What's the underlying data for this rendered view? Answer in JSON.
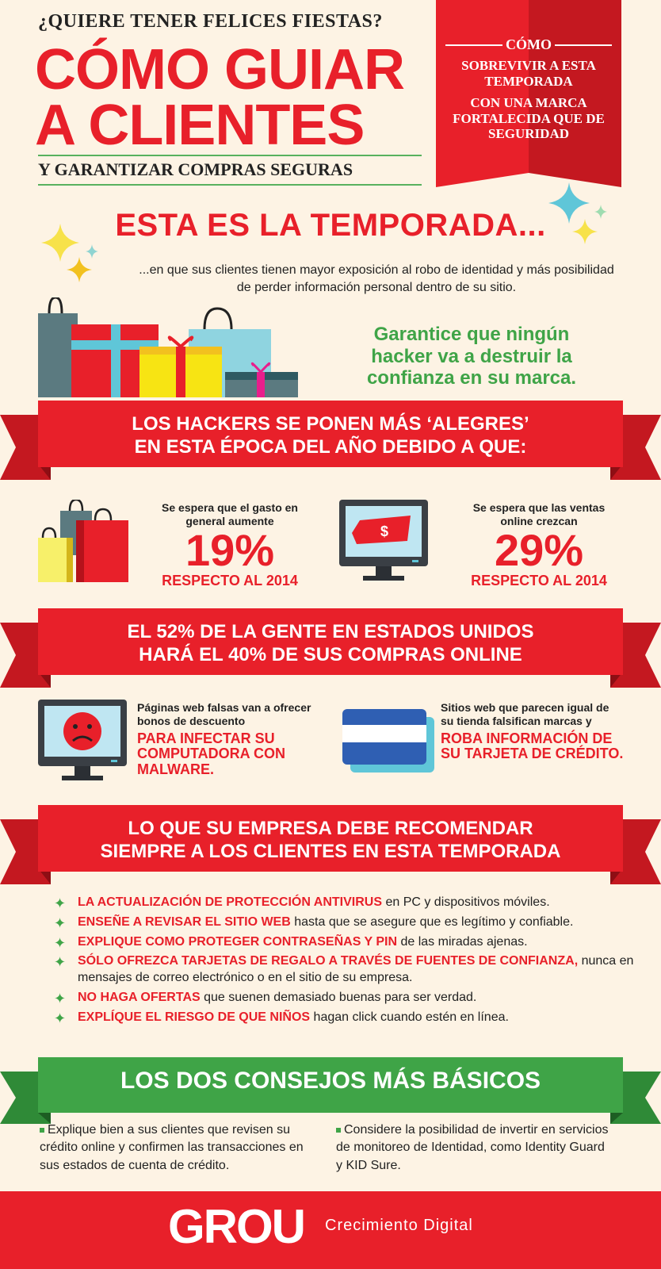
{
  "header": {
    "kicker": "¿QUIERE TENER FELICES FIESTAS?",
    "title_line1": "CÓMO GUIAR",
    "title_line2": "A CLIENTES",
    "subtitle": "Y GARANTIZAR COMPRAS SEGURAS"
  },
  "ribbon": {
    "heading": "CÓMO",
    "line1": "SOBREVIVIR A ESTA TEMPORADA",
    "line2": "CON UNA MARCA FORTALECIDA QUE DE SEGURIDAD"
  },
  "season": {
    "title": "ESTA ES LA TEMPORADA...",
    "description": "...en que sus clientes tienen mayor exposición al robo de identidad y más posibilidad de perder información personal dentro de su sitio.",
    "guarantee": "Garantice que ningún hacker va a destruir la confianza en su marca."
  },
  "banner1": {
    "line1": "LOS HACKERS SE PONEN MÁS ‘ALEGRES’",
    "line2": "EN ESTA ÉPOCA DEL AÑO DEBIDO A QUE:"
  },
  "stats": [
    {
      "caption": "Se espera que el gasto en general aumente",
      "value": "19%",
      "sub": "RESPECTO AL 2014"
    },
    {
      "caption": "Se espera que las ventas online crezcan",
      "value": "29%",
      "sub": "RESPECTO AL 2014"
    }
  ],
  "banner2": {
    "line1": "EL 52% DE LA GENTE EN ESTADOS UNIDOS",
    "line2": "HARÁ EL 40% DE SUS COMPRAS ONLINE"
  },
  "warnings": [
    {
      "small": "Páginas web falsas van a ofrecer bonos de descuento",
      "big": "PARA INFECTAR SU COMPUTADORA CON MALWARE."
    },
    {
      "small": "Sitios web que parecen igual de su tienda falsifican marcas y",
      "big": "ROBA INFORMACIÓN DE SU TARJETA DE CRÉDITO."
    }
  ],
  "banner3": {
    "line1": "LO QUE SU EMPRESA DEBE RECOMENDAR",
    "line2": "SIEMPRE A LOS CLIENTES EN ESTA TEMPORADA"
  },
  "tips": [
    {
      "highlight": "LA ACTUALIZACIÓN DE PROTECCIÓN ANTIVIRUS",
      "rest": " en PC y dispositivos móviles."
    },
    {
      "highlight": "ENSEÑE A REVISAR EL SITIO WEB",
      "rest": " hasta que se asegure que es legítimo y confiable."
    },
    {
      "highlight": "EXPLIQUE COMO PROTEGER CONTRASEÑAS Y PIN",
      "rest": " de las miradas ajenas."
    },
    {
      "highlight": "SÓLO OFREZCA TARJETAS DE REGALO A TRAVÉS DE FUENTES DE CONFIANZA,",
      "rest": " nunca en mensajes de correo electrónico o en el sitio de su empresa."
    },
    {
      "highlight": "NO HAGA OFERTAS",
      "rest": " que suenen demasiado buenas para ser verdad."
    },
    {
      "highlight": "EXPLÍQUE EL RIESGO DE QUE NIÑOS",
      "rest": " hagan click cuando estén en línea."
    }
  ],
  "basics": {
    "title": "LOS DOS CONSEJOS MÁS BÁSICOS",
    "items": [
      "Explique bien a sus clientes que revisen su crédito online y confirmen las transacciones en sus estados de cuenta de crédito.",
      "Considere la posibilidad de invertir en servicios de monitoreo de Identidad, como Identity Guard y KID Sure."
    ]
  },
  "footer": {
    "logo": "GROU",
    "tagline": "Crecimiento Digital"
  },
  "colors": {
    "red": "#e8202a",
    "dark_red": "#b5121b",
    "green": "#3fa447",
    "background": "#fdf3e4"
  }
}
